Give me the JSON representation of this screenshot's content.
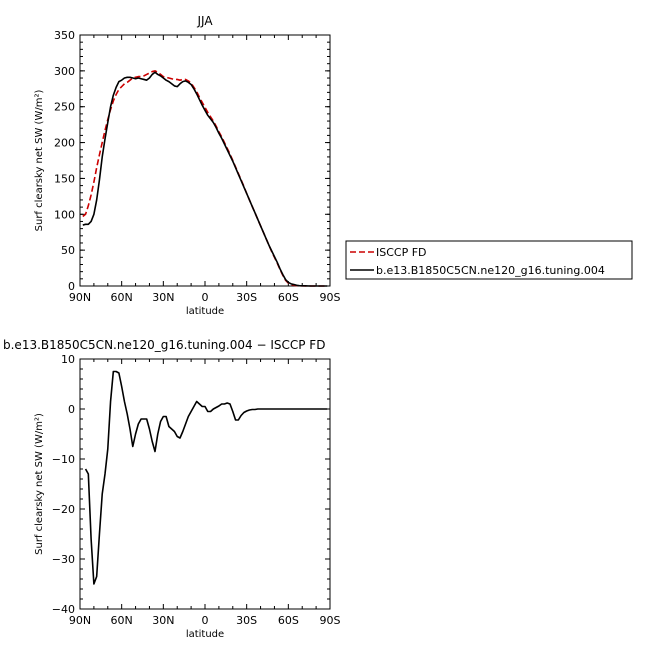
{
  "chart_data": [
    {
      "type": "line",
      "title": "JJA",
      "xlabel": "latitude",
      "ylabel": "Surf clearsky net SW (W/m²)",
      "xlim": [
        90,
        -90
      ],
      "ylim": [
        0,
        350
      ],
      "x_tick_values": [
        90,
        60,
        30,
        0,
        -30,
        -60,
        -90
      ],
      "x_tick_labels": [
        "90N",
        "60N",
        "30N",
        "0",
        "30S",
        "60S",
        "90S"
      ],
      "y_ticks": [
        0,
        50,
        100,
        150,
        200,
        250,
        300,
        350
      ],
      "legend_placement": "outside-right",
      "series": [
        {
          "name": "ISCCP FD",
          "color": "#cc0000",
          "dash": true,
          "x": [
            88,
            86,
            84,
            82,
            80,
            78,
            76,
            74,
            72,
            70,
            68,
            66,
            64,
            62,
            60,
            58,
            56,
            54,
            52,
            50,
            48,
            46,
            44,
            42,
            40,
            38,
            36,
            34,
            32,
            30,
            28,
            26,
            24,
            22,
            20,
            18,
            16,
            14,
            12,
            10,
            8,
            6,
            4,
            2,
            0,
            -2,
            -4,
            -6,
            -8,
            -10,
            -12,
            -14,
            -16,
            -18,
            -20,
            -22,
            -24,
            -26,
            -28,
            -30,
            -32,
            -34,
            -36,
            -38,
            -40,
            -42,
            -44,
            -46,
            -48,
            -50,
            -52,
            -54,
            -56,
            -58,
            -60,
            -62,
            -64,
            -66,
            -68,
            -70,
            -72,
            -74,
            -76,
            -78,
            -80,
            -82,
            -84,
            -86,
            -88
          ],
          "values": [
            97,
            100,
            112,
            127,
            145,
            165,
            183,
            200,
            217,
            232,
            246,
            258,
            267,
            274,
            278,
            282,
            284,
            287,
            290,
            291,
            292,
            292,
            293,
            295,
            297,
            299,
            300,
            298,
            295,
            292,
            291,
            290,
            289,
            288,
            288,
            287,
            288,
            288,
            286,
            283,
            277,
            271,
            263,
            256,
            249,
            242,
            236,
            230,
            223,
            215,
            208,
            200,
            192,
            184,
            175,
            166,
            157,
            148,
            139,
            129,
            120,
            111,
            102,
            93,
            84,
            75,
            66,
            57,
            48,
            40,
            32,
            23,
            15,
            8,
            4,
            2,
            1,
            0.5,
            0.3,
            0.2,
            0.1,
            0.1,
            0,
            0,
            0,
            0,
            0,
            0,
            0
          ]
        },
        {
          "name": "b.e13.B1850C5CN.ne120_g16.tuning.004",
          "color": "#000000",
          "dash": false,
          "x": [
            88,
            86,
            84,
            82,
            80,
            78,
            76,
            74,
            72,
            70,
            68,
            66,
            64,
            62,
            60,
            58,
            56,
            54,
            52,
            50,
            48,
            46,
            44,
            42,
            40,
            38,
            36,
            34,
            32,
            30,
            28,
            26,
            24,
            22,
            20,
            18,
            16,
            14,
            12,
            10,
            8,
            6,
            4,
            2,
            0,
            -2,
            -4,
            -6,
            -8,
            -10,
            -12,
            -14,
            -16,
            -18,
            -20,
            -22,
            -24,
            -26,
            -28,
            -30,
            -32,
            -34,
            -36,
            -38,
            -40,
            -42,
            -44,
            -46,
            -48,
            -50,
            -52,
            -54,
            -56,
            -58,
            -60,
            -62,
            -64,
            -66,
            -68,
            -70,
            -72,
            -74,
            -76,
            -78,
            -80,
            -82,
            -84,
            -86,
            -88
          ],
          "values": [
            85,
            86,
            86,
            90,
            100,
            120,
            148,
            180,
            205,
            228,
            250,
            266,
            277,
            285,
            287,
            290,
            291,
            291,
            290,
            289,
            290,
            289,
            288,
            287,
            290,
            295,
            298,
            295,
            293,
            290,
            287,
            285,
            282,
            279,
            278,
            282,
            285,
            286,
            284,
            281,
            275,
            268,
            260,
            252,
            245,
            238,
            233,
            228,
            221,
            213,
            206,
            198,
            190,
            182,
            174,
            165,
            156,
            147,
            138,
            129,
            120,
            111,
            102,
            93,
            84,
            75,
            66,
            57,
            49,
            41,
            33,
            24,
            16,
            9,
            5,
            3,
            2,
            1,
            0.5,
            0.3,
            0.2,
            0.1,
            0,
            0,
            0,
            0,
            0,
            0,
            0
          ]
        }
      ]
    },
    {
      "type": "line",
      "title": "b.e13.B1850C5CN.ne120_g16.tuning.004 − ISCCP FD",
      "xlabel": "latitude",
      "ylabel": "Surf clearsky net SW (W/m²)",
      "xlim": [
        90,
        -90
      ],
      "ylim": [
        -40,
        10
      ],
      "x_tick_values": [
        90,
        60,
        30,
        0,
        -30,
        -60,
        -90
      ],
      "x_tick_labels": [
        "90N",
        "60N",
        "30N",
        "0",
        "30S",
        "60S",
        "90S"
      ],
      "y_ticks": [
        -40,
        -30,
        -20,
        -10,
        0,
        10
      ],
      "series": [
        {
          "color": "#000000",
          "x": [
            86,
            84,
            82,
            80,
            78,
            76,
            74,
            72,
            70,
            68,
            66,
            64,
            62,
            60,
            58,
            56,
            54,
            52,
            50,
            48,
            46,
            44,
            42,
            40,
            38,
            36,
            34,
            32,
            30,
            28,
            26,
            24,
            22,
            20,
            18,
            16,
            14,
            12,
            10,
            8,
            6,
            4,
            2,
            0,
            -2,
            -4,
            -6,
            -8,
            -10,
            -12,
            -14,
            -16,
            -18,
            -20,
            -22,
            -24,
            -26,
            -28,
            -30,
            -32,
            -34,
            -36,
            -38,
            -40,
            -42,
            -44,
            -46,
            -48,
            -50,
            -52,
            -54,
            -56,
            -58,
            -60,
            -62,
            -64,
            -66,
            -68,
            -70,
            -72,
            -74,
            -76,
            -78,
            -80,
            -82,
            -84,
            -86,
            -88
          ],
          "values": [
            -12,
            -13,
            -26,
            -35,
            -33.5,
            -25,
            -17,
            -13,
            -8,
            1.5,
            7.5,
            7.5,
            7.2,
            4.5,
            1.5,
            -1,
            -4,
            -7.5,
            -5,
            -3,
            -2,
            -2,
            -2,
            -4,
            -6.5,
            -8.5,
            -5,
            -2.5,
            -1.5,
            -1.5,
            -3.5,
            -4,
            -4.5,
            -5.5,
            -5.8,
            -4.5,
            -3,
            -1.5,
            -0.5,
            0.5,
            1.5,
            1,
            0.5,
            0.5,
            -0.5,
            -0.5,
            0,
            0.3,
            0.6,
            1,
            1,
            1.2,
            1,
            -0.5,
            -2.2,
            -2.2,
            -1.3,
            -0.7,
            -0.4,
            -0.2,
            -0.1,
            -0.1,
            0,
            0,
            0,
            0,
            0,
            0,
            0,
            0,
            0,
            0,
            0,
            0,
            0,
            0,
            0,
            0,
            0,
            0,
            0,
            0,
            0,
            0,
            0,
            0,
            0,
            0
          ]
        }
      ]
    }
  ]
}
